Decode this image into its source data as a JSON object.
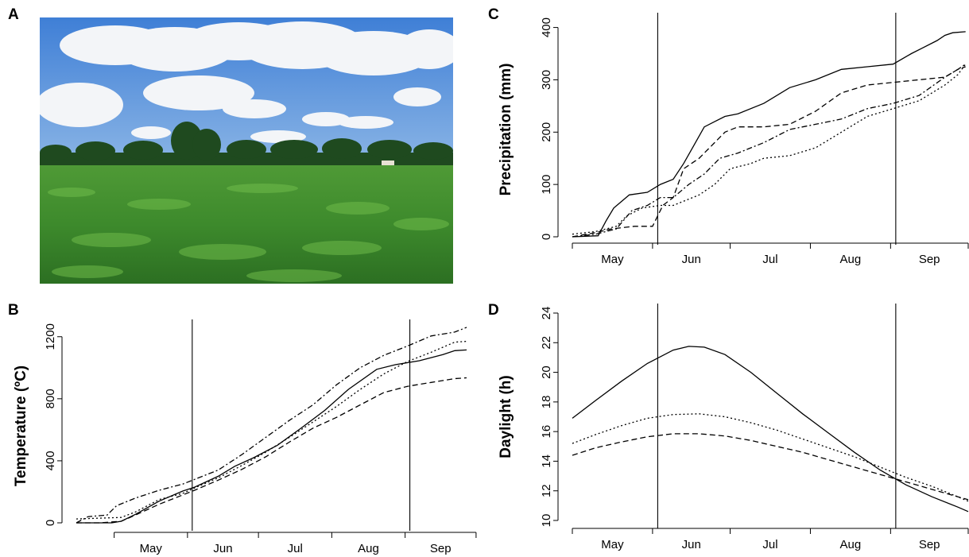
{
  "panels": {
    "a": "A",
    "b": "B",
    "c": "C",
    "d": "D"
  },
  "photo": {
    "sky_color": "#4a86d8",
    "cloud_color": "#f4f6f8",
    "tree_color": "#1f4a1f",
    "crop_color": "#3d8a2c",
    "crop_light": "#6fbb4a"
  },
  "chart_data": [
    {
      "panel": "B",
      "type": "line",
      "ylabel": "Temperature (ºC)",
      "xlabel": "",
      "x_ticks": [
        "May",
        "Jun",
        "Jul",
        "Aug",
        "Sep"
      ],
      "y_ticks": [
        0,
        400,
        800,
        1200
      ],
      "ylim": [
        0,
        1250
      ],
      "x_unit": "day of year",
      "xlim": [
        105,
        270
      ],
      "vlines": [
        154,
        246
      ],
      "series": [
        {
          "style": "solid",
          "x": [
            105,
            120,
            124,
            130,
            140,
            150,
            155,
            165,
            172,
            180,
            190,
            200,
            210,
            220,
            232,
            240,
            250,
            260,
            265,
            270
          ],
          "y": [
            0,
            0,
            10,
            55,
            140,
            205,
            230,
            300,
            365,
            420,
            500,
            610,
            725,
            860,
            990,
            1020,
            1045,
            1085,
            1110,
            1115
          ]
        },
        {
          "style": "dashed",
          "x": [
            105,
            115,
            124,
            130,
            140,
            150,
            155,
            165,
            175,
            185,
            195,
            205,
            215,
            225,
            235,
            245,
            255,
            265,
            270
          ],
          "y": [
            0,
            0,
            10,
            50,
            120,
            180,
            210,
            275,
            345,
            425,
            520,
            610,
            680,
            760,
            840,
            880,
            905,
            930,
            935
          ]
        },
        {
          "style": "dotted",
          "x": [
            105,
            115,
            124,
            130,
            140,
            150,
            155,
            165,
            175,
            185,
            195,
            205,
            215,
            225,
            235,
            245,
            255,
            265,
            270
          ],
          "y": [
            25,
            30,
            35,
            70,
            150,
            190,
            225,
            290,
            370,
            455,
            550,
            650,
            750,
            860,
            960,
            1040,
            1100,
            1165,
            1170
          ]
        },
        {
          "style": "dashdot",
          "x": [
            105,
            110,
            118,
            122,
            130,
            140,
            150,
            155,
            165,
            175,
            185,
            195,
            205,
            215,
            225,
            235,
            245,
            255,
            265,
            270
          ],
          "y": [
            0,
            40,
            50,
            110,
            160,
            210,
            250,
            280,
            340,
            440,
            550,
            660,
            760,
            890,
            1000,
            1080,
            1140,
            1205,
            1230,
            1260
          ]
        }
      ]
    },
    {
      "panel": "C",
      "type": "line",
      "ylabel": "Precipitation (mm)",
      "xlabel": "",
      "x_ticks": [
        "May",
        "Jun",
        "Jul",
        "Aug",
        "Sep"
      ],
      "y_ticks": [
        0,
        100,
        200,
        300,
        400
      ],
      "ylim": [
        0,
        410
      ],
      "x_unit": "day of year",
      "xlim": [
        121,
        274
      ],
      "vlines": [
        154,
        246
      ],
      "series": [
        {
          "style": "solid",
          "x": [
            121,
            131,
            134,
            137,
            143,
            150,
            155,
            160,
            164,
            168,
            172,
            176,
            180,
            185,
            195,
            205,
            215,
            225,
            235,
            245,
            252,
            256,
            262,
            265,
            268,
            273
          ],
          "y": [
            0,
            2,
            30,
            55,
            80,
            85,
            100,
            110,
            140,
            175,
            210,
            220,
            230,
            235,
            255,
            285,
            300,
            320,
            325,
            330,
            350,
            360,
            375,
            385,
            390,
            392
          ]
        },
        {
          "style": "dashed",
          "x": [
            121,
            130,
            136,
            145,
            152,
            156,
            160,
            164,
            170,
            176,
            180,
            185,
            195,
            205,
            215,
            225,
            235,
            245,
            255,
            265,
            270,
            273
          ],
          "y": [
            0,
            8,
            15,
            20,
            20,
            60,
            75,
            130,
            150,
            180,
            200,
            210,
            210,
            215,
            240,
            275,
            290,
            295,
            300,
            305,
            320,
            325
          ]
        },
        {
          "style": "dotted",
          "x": [
            121,
            130,
            138,
            142,
            148,
            155,
            160,
            165,
            170,
            176,
            182,
            190,
            195,
            205,
            215,
            225,
            235,
            245,
            255,
            265,
            270,
            273
          ],
          "y": [
            5,
            10,
            20,
            40,
            55,
            60,
            60,
            70,
            80,
            100,
            130,
            140,
            150,
            155,
            170,
            200,
            230,
            245,
            260,
            290,
            310,
            330
          ]
        },
        {
          "style": "dashdot",
          "x": [
            121,
            130,
            138,
            144,
            150,
            155,
            160,
            166,
            172,
            178,
            185,
            195,
            205,
            215,
            225,
            235,
            245,
            255,
            265,
            270,
            273
          ],
          "y": [
            0,
            5,
            15,
            50,
            60,
            75,
            75,
            100,
            120,
            150,
            160,
            180,
            205,
            215,
            225,
            245,
            255,
            270,
            305,
            320,
            330
          ]
        }
      ]
    },
    {
      "panel": "D",
      "type": "line",
      "ylabel": "Daylight (h)",
      "xlabel": "",
      "x_ticks": [
        "May",
        "Jun",
        "Jul",
        "Aug",
        "Sep"
      ],
      "y_ticks": [
        10,
        12,
        14,
        16,
        18,
        20,
        22,
        24
      ],
      "ylim": [
        10,
        24
      ],
      "x_unit": "day of year",
      "xlim": [
        121,
        274
      ],
      "vlines": [
        154,
        246
      ],
      "series": [
        {
          "style": "solid",
          "x": [
            121,
            130,
            140,
            150,
            160,
            166,
            172,
            180,
            190,
            200,
            210,
            220,
            230,
            240,
            250,
            260,
            270,
            274
          ],
          "y": [
            16.9,
            18.1,
            19.4,
            20.6,
            21.5,
            21.75,
            21.7,
            21.2,
            20.0,
            18.6,
            17.2,
            15.9,
            14.6,
            13.4,
            12.4,
            11.6,
            10.9,
            10.6
          ]
        },
        {
          "style": "dotted",
          "x": [
            121,
            130,
            140,
            150,
            160,
            170,
            180,
            190,
            200,
            210,
            220,
            230,
            240,
            250,
            260,
            270,
            274
          ],
          "y": [
            15.2,
            15.8,
            16.4,
            16.9,
            17.15,
            17.2,
            17.0,
            16.6,
            16.1,
            15.5,
            14.9,
            14.3,
            13.6,
            12.9,
            12.3,
            11.6,
            11.3
          ]
        },
        {
          "style": "dashed",
          "x": [
            121,
            130,
            140,
            150,
            160,
            170,
            180,
            190,
            200,
            210,
            220,
            230,
            240,
            250,
            260,
            270,
            274
          ],
          "y": [
            14.4,
            14.9,
            15.3,
            15.65,
            15.85,
            15.85,
            15.7,
            15.4,
            15.0,
            14.6,
            14.1,
            13.6,
            13.1,
            12.6,
            12.1,
            11.6,
            11.4
          ]
        }
      ]
    }
  ]
}
